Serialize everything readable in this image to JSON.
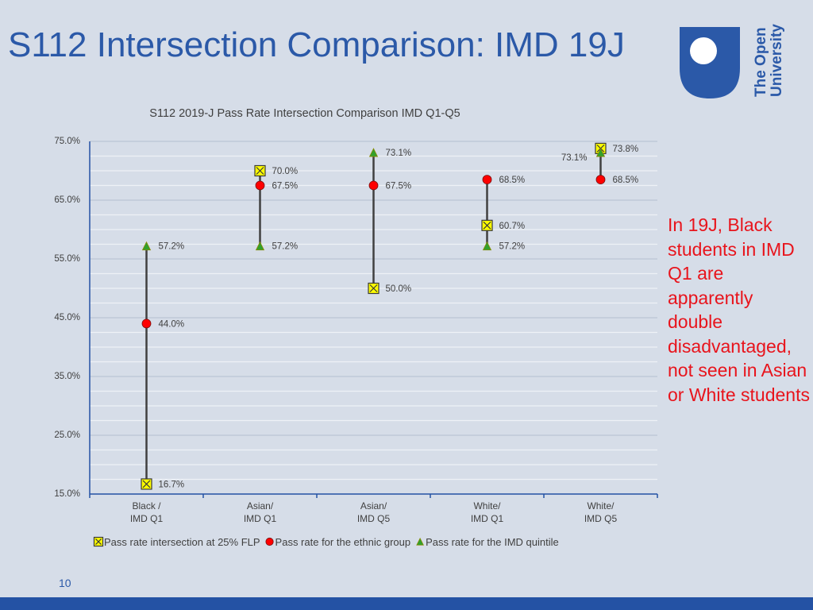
{
  "slide": {
    "title": "S112 Intersection Comparison: IMD 19J",
    "note": "In 19J, Black students in IMD Q1 are apparently double disadvantaged, not seen in Asian or White students",
    "page_number": "10",
    "logo_lines": [
      "The Open",
      "University"
    ]
  },
  "colors": {
    "title": "#2b59a8",
    "note": "#e8141c",
    "intersection": "#ffff00",
    "ethnic": "#ff0000",
    "imd": "#32a02c",
    "line": "#404040",
    "footer": "#2452a4"
  },
  "chart_data": {
    "type": "scatter",
    "title": "S112 2019-J Pass Rate Intersection Comparison IMD Q1-Q5",
    "categories": [
      [
        "Black /",
        "IMD Q1"
      ],
      [
        "Asian/",
        "IMD Q1"
      ],
      [
        "Asian/",
        "IMD Q5"
      ],
      [
        "White/",
        "IMD Q1"
      ],
      [
        "White/",
        "IMD Q5"
      ]
    ],
    "ylim": [
      15,
      75
    ],
    "yticks": [
      75,
      65,
      55,
      45,
      35,
      25,
      15
    ],
    "ytick_labels": [
      "75.0%",
      "65.0%",
      "55.0%",
      "45.0%",
      "35.0%",
      "25.0%",
      "15.0%"
    ],
    "grid": true,
    "legend_position": "bottom",
    "series": [
      {
        "name": "Pass rate intersection at 25% FLP",
        "marker": "box-x",
        "values": [
          16.7,
          70.0,
          50.0,
          60.7,
          73.8
        ],
        "labels": [
          "16.7%",
          "70.0%",
          "50.0%",
          "60.7%",
          "73.8%"
        ]
      },
      {
        "name": "Pass rate for the ethnic group",
        "marker": "circle",
        "values": [
          44.0,
          67.5,
          67.5,
          68.5,
          68.5
        ],
        "labels": [
          "44.0%",
          "67.5%",
          "67.5%",
          "68.5%",
          "68.5%"
        ]
      },
      {
        "name": "Pass rate for the IMD quintile",
        "marker": "triangle",
        "values": [
          57.2,
          57.2,
          73.1,
          57.2,
          73.1
        ],
        "labels": [
          "57.2%",
          "57.2%",
          "73.1%",
          "57.2%",
          "73.1%"
        ]
      }
    ]
  }
}
